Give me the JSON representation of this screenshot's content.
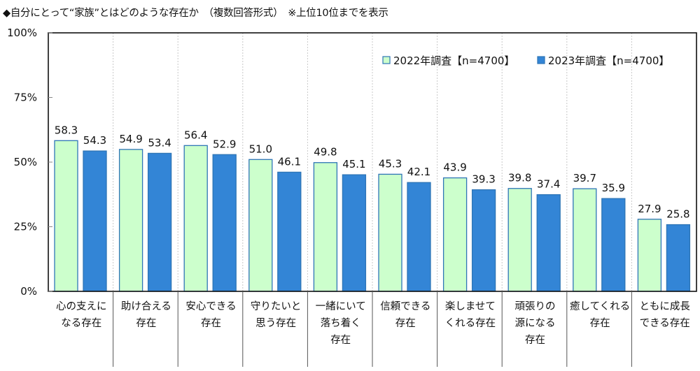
{
  "title": {
    "main": "◆自分にとって“家族”とはどのような存在か",
    "note1": "（複数回答形式）",
    "note2": "※上位10位までを表示"
  },
  "chart_data": {
    "type": "bar",
    "title": "◆自分にとって“家族”とはどのような存在か　（複数回答形式）　※上位10位までを表示",
    "xlabel": "",
    "ylabel": "",
    "ylim": [
      0,
      100
    ],
    "yticks": [
      0,
      25,
      50,
      75,
      100
    ],
    "ytick_labels": [
      "0%",
      "25%",
      "50%",
      "75%",
      "100%"
    ],
    "grid": false,
    "legend_position": "top-right",
    "categories": [
      [
        "心の支えに",
        "なる存在"
      ],
      [
        "助け合える",
        "存在"
      ],
      [
        "安心できる",
        "存在"
      ],
      [
        "守りたいと",
        "思う存在"
      ],
      [
        "一緒にいて",
        "落ち着く",
        "存在"
      ],
      [
        "信頼できる",
        "存在"
      ],
      [
        "楽しませて",
        "くれる存在"
      ],
      [
        "頑張りの",
        "源になる",
        "存在"
      ],
      [
        "癒してくれる",
        "存在"
      ],
      [
        "ともに成長",
        "できる存在"
      ]
    ],
    "series": [
      {
        "name": "2022年調査【n=4700】",
        "fill": "#ccffcc",
        "stroke": "#2e75b6",
        "values": [
          58.3,
          54.9,
          56.4,
          51.0,
          49.8,
          45.3,
          43.9,
          39.8,
          39.7,
          27.9
        ],
        "labels": [
          "58.3",
          "54.9",
          "56.4",
          "51.0",
          "49.8",
          "45.3",
          "43.9",
          "39.8",
          "39.7",
          "27.9"
        ]
      },
      {
        "name": "2023年調査【n=4700】",
        "fill": "#3385d6",
        "stroke": "#2e75b6",
        "values": [
          54.3,
          53.4,
          52.9,
          46.1,
          45.1,
          42.1,
          39.3,
          37.4,
          35.9,
          25.8
        ],
        "labels": [
          "54.3",
          "53.4",
          "52.9",
          "46.1",
          "45.1",
          "42.1",
          "39.3",
          "37.4",
          "35.9",
          "25.8"
        ]
      }
    ]
  }
}
